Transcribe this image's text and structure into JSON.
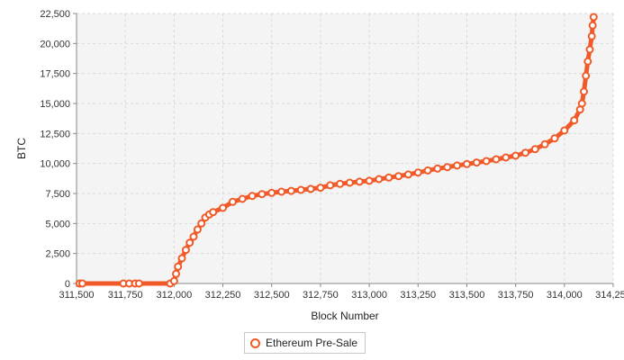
{
  "chart_data": {
    "type": "line",
    "title": "",
    "xlabel": "Block Number",
    "ylabel": "BTC",
    "xlim": [
      311500,
      314250
    ],
    "ylim": [
      0,
      22500
    ],
    "x_ticks": [
      311500,
      311750,
      312000,
      312250,
      312500,
      312750,
      313000,
      313250,
      313500,
      313750,
      314000,
      314250
    ],
    "x_tick_labels": [
      "311,500",
      "311,750",
      "312,000",
      "312,250",
      "312,500",
      "312,750",
      "313,000",
      "313,250",
      "313,500",
      "313,750",
      "314,000",
      "314,250"
    ],
    "y_ticks": [
      0,
      2500,
      5000,
      7500,
      10000,
      12500,
      15000,
      17500,
      20000,
      22500
    ],
    "y_tick_labels": [
      "0",
      "2,500",
      "5,000",
      "7,500",
      "10,000",
      "12,500",
      "15,000",
      "17,500",
      "20,000",
      "22,500"
    ],
    "grid": true,
    "legend_position": "bottom-center",
    "series": [
      {
        "name": "Ethereum Pre-Sale",
        "color": "#f05a28",
        "x": [
          311515,
          311530,
          311740,
          311770,
          311800,
          311820,
          311980,
          312000,
          312010,
          312020,
          312040,
          312060,
          312080,
          312100,
          312120,
          312140,
          312160,
          312180,
          312200,
          312250,
          312300,
          312350,
          312400,
          312450,
          312500,
          312550,
          312600,
          312650,
          312700,
          312750,
          312800,
          312850,
          312900,
          312950,
          313000,
          313050,
          313100,
          313150,
          313200,
          313250,
          313300,
          313350,
          313400,
          313450,
          313500,
          313550,
          313600,
          313650,
          313700,
          313750,
          313800,
          313850,
          313900,
          313950,
          314000,
          314050,
          314080,
          314090,
          314100,
          314110,
          314120,
          314130,
          314140,
          314145,
          314150
        ],
        "y": [
          0,
          0,
          0,
          0,
          0,
          0,
          0,
          200,
          800,
          1400,
          2100,
          2800,
          3400,
          3900,
          4500,
          5000,
          5500,
          5750,
          5950,
          6300,
          6800,
          7050,
          7300,
          7450,
          7550,
          7650,
          7720,
          7800,
          7880,
          7980,
          8180,
          8300,
          8400,
          8480,
          8560,
          8700,
          8830,
          8950,
          9080,
          9250,
          9420,
          9580,
          9700,
          9830,
          9950,
          10080,
          10200,
          10350,
          10500,
          10650,
          10900,
          11200,
          11600,
          12100,
          12750,
          13600,
          14500,
          15000,
          16000,
          17300,
          18500,
          19500,
          20600,
          21500,
          22200
        ]
      }
    ]
  }
}
